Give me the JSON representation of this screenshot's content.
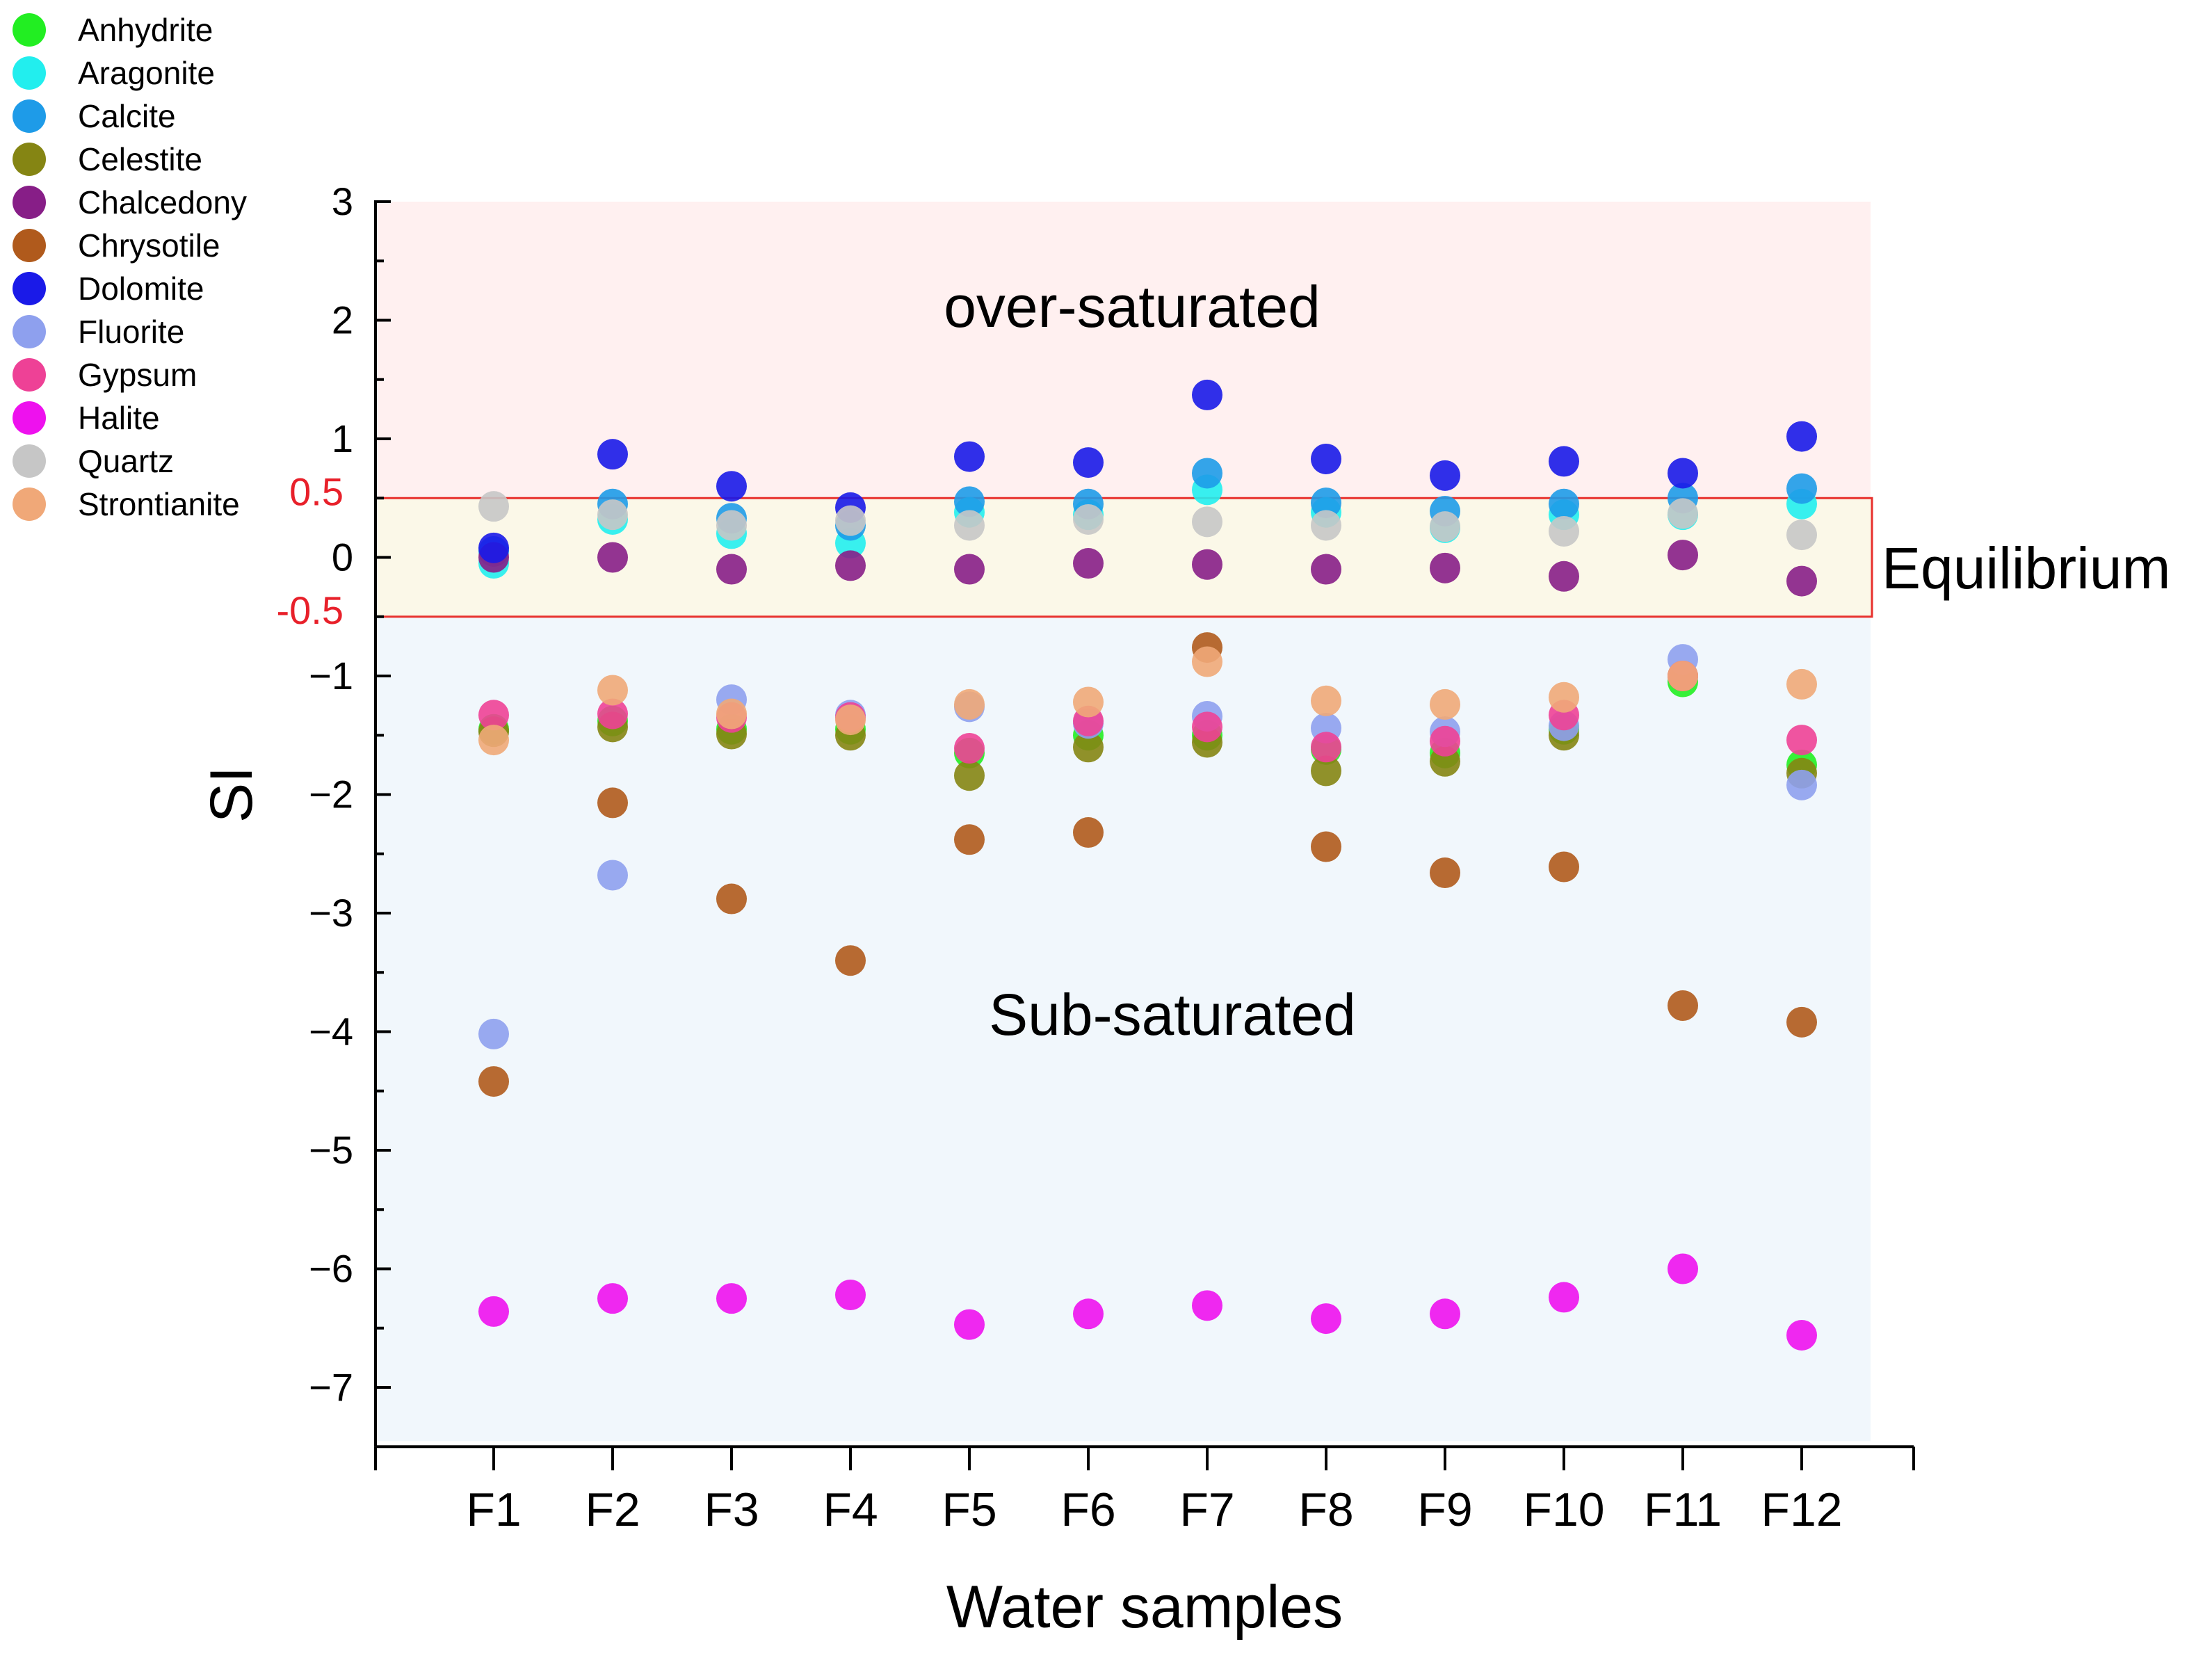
{
  "chart_data": {
    "type": "scatter",
    "title": "",
    "xlabel": "Water samples",
    "ylabel": "SI",
    "categories": [
      "F1",
      "F2",
      "F3",
      "F4",
      "F5",
      "F6",
      "F7",
      "F8",
      "F9",
      "F10",
      "F11",
      "F12"
    ],
    "ylim": [
      -7.5,
      3
    ],
    "yticks": [
      {
        "value": 3,
        "label": "3"
      },
      {
        "value": 2,
        "label": "2"
      },
      {
        "value": 1,
        "label": "1"
      },
      {
        "value": 0,
        "label": "0"
      },
      {
        "value": -1,
        "label": "−1"
      },
      {
        "value": -2,
        "label": "−2"
      },
      {
        "value": -3,
        "label": "−3"
      },
      {
        "value": -4,
        "label": "−4"
      },
      {
        "value": -5,
        "label": "−5"
      },
      {
        "value": -6,
        "label": "−6"
      },
      {
        "value": -7,
        "label": "−7"
      }
    ],
    "equilibrium_ticks": [
      {
        "value": 0.5,
        "label": "0.5"
      },
      {
        "value": -0.5,
        "label": "-0.5"
      }
    ],
    "regions": {
      "over": {
        "label": "over-saturated",
        "from": 0.5,
        "to": 3,
        "color": "#fff0f0"
      },
      "equilibrium": {
        "label": "Equilibrium",
        "from": -0.5,
        "to": 0.5,
        "color": "#fbf8e8",
        "border": "#e8302c"
      },
      "sub": {
        "label": "Sub-saturated",
        "from": -7.5,
        "to": -0.5,
        "color": "#f1f7fc"
      }
    },
    "series": [
      {
        "name": "Anhydrite",
        "color": "#22ee22",
        "values": [
          -1.45,
          -1.38,
          -1.45,
          -1.45,
          -1.65,
          -1.5,
          -1.5,
          -1.62,
          -1.65,
          -1.45,
          -1.05,
          -1.75
        ]
      },
      {
        "name": "Aragonite",
        "color": "#22eeee",
        "values": [
          -0.05,
          0.32,
          0.2,
          0.12,
          0.38,
          0.36,
          0.57,
          0.38,
          0.25,
          0.36,
          0.36,
          0.45
        ]
      },
      {
        "name": "Calcite",
        "color": "#1e9be8",
        "values": [
          0.05,
          0.45,
          0.33,
          0.27,
          0.47,
          0.45,
          0.71,
          0.46,
          0.39,
          0.45,
          0.5,
          0.58
        ]
      },
      {
        "name": "Celestite",
        "color": "#858513",
        "values": [
          -1.47,
          -1.43,
          -1.49,
          -1.5,
          -1.84,
          -1.6,
          -1.56,
          -1.8,
          -1.72,
          -1.5,
          -1.0,
          -1.82
        ]
      },
      {
        "name": "Chalcedony",
        "color": "#871e87",
        "values": [
          0.0,
          0.0,
          -0.1,
          -0.07,
          -0.1,
          -0.05,
          -0.06,
          -0.1,
          -0.09,
          -0.16,
          0.02,
          -0.2
        ]
      },
      {
        "name": "Chrysotile",
        "color": "#b05a1c",
        "values": [
          -4.42,
          -2.07,
          -2.88,
          -3.4,
          -2.38,
          -2.32,
          -0.76,
          -2.44,
          -2.66,
          -2.61,
          -3.78,
          -3.92
        ]
      },
      {
        "name": "Dolomite",
        "color": "#1a1ae8",
        "values": [
          0.08,
          0.87,
          0.6,
          0.42,
          0.85,
          0.8,
          1.37,
          0.83,
          0.69,
          0.81,
          0.71,
          1.02
        ]
      },
      {
        "name": "Fluorite",
        "color": "#8ea0ee",
        "values": [
          -4.02,
          -2.68,
          -1.2,
          -1.33,
          -1.26,
          -1.4,
          -1.34,
          -1.44,
          -1.47,
          -1.42,
          -0.86,
          -1.92
        ]
      },
      {
        "name": "Gypsum",
        "color": "#ee4196",
        "values": [
          -1.33,
          -1.32,
          -1.35,
          -1.35,
          -1.61,
          -1.38,
          -1.43,
          -1.6,
          -1.55,
          -1.33,
          -1.0,
          -1.54
        ]
      },
      {
        "name": "Halite",
        "color": "#ee11ee",
        "values": [
          -6.36,
          -6.25,
          -6.25,
          -6.22,
          -6.47,
          -6.38,
          -6.31,
          -6.42,
          -6.38,
          -6.24,
          -6.0,
          -6.56
        ]
      },
      {
        "name": "Quartz",
        "color": "#c6c6c6",
        "values": [
          0.43,
          0.36,
          0.27,
          0.31,
          0.27,
          0.32,
          0.3,
          0.27,
          0.26,
          0.22,
          0.37,
          0.19
        ]
      },
      {
        "name": "Strontianite",
        "color": "#f0a878",
        "values": [
          -1.54,
          -1.12,
          -1.32,
          -1.37,
          -1.24,
          -1.22,
          -0.88,
          -1.21,
          -1.24,
          -1.18,
          -1.0,
          -1.07
        ]
      }
    ]
  }
}
